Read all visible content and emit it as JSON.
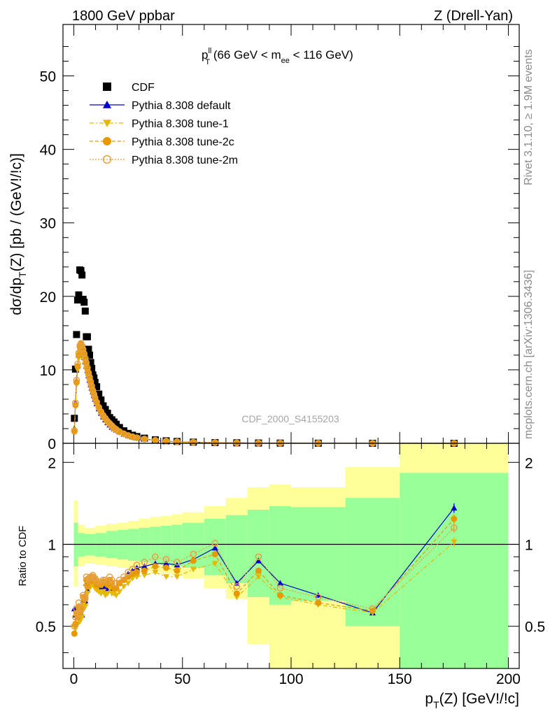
{
  "header": {
    "left": "1800 GeV ppbar",
    "right": "Z (Drell-Yan)"
  },
  "side_labels": {
    "rivet": "Rivet 3.1.10, ≥ 1.9M events",
    "mcplots": "mcplots.cern.ch [arXiv:1306.3436]"
  },
  "watermark": "CDF_2000_S4155203",
  "plot_title": {
    "p": "p",
    "sup": "ll",
    "sub": "T",
    "rest1": " (66 GeV < m",
    "sub2": "ee",
    "rest2": " < 116 GeV)"
  },
  "axis_titles": {
    "y_main": "dσ/dp",
    "y_main_sub": "T",
    "y_main_rest": "(Z) [pb / (GeV!/!c)]",
    "y_ratio": "Ratio to CDF",
    "x_p": "p",
    "x_sub": "T",
    "x_rest": "(Z) [GeV!/!c]"
  },
  "legend": [
    {
      "label": "CDF",
      "color": "#000000",
      "marker": "square",
      "dash": ""
    },
    {
      "label": "Pythia 8.308 default",
      "color": "#0000cc",
      "marker": "triangle-up",
      "dash": ""
    },
    {
      "label": "Pythia 8.308 tune-1",
      "color": "#e6b800",
      "marker": "triangle-down",
      "dash": "6,3,2,3"
    },
    {
      "label": "Pythia 8.308 tune-2c",
      "color": "#e69900",
      "marker": "circle",
      "dash": "5,3"
    },
    {
      "label": "Pythia 8.308 tune-2m",
      "color": "#e6a040",
      "marker": "circle-open",
      "dash": "2,2"
    }
  ],
  "chart_data": [
    {
      "type": "scatter",
      "name": "main",
      "xlim": [
        -5,
        205
      ],
      "ylim": [
        0,
        57
      ],
      "yticks": [
        0,
        10,
        20,
        30,
        40,
        50
      ],
      "x": [
        0.25,
        0.75,
        1.25,
        1.75,
        2.25,
        2.75,
        3.25,
        3.75,
        4.25,
        4.75,
        5.25,
        5.75,
        6.25,
        6.75,
        7.25,
        7.75,
        8.25,
        8.75,
        9.25,
        9.75,
        10.5,
        11.5,
        12.5,
        13.5,
        14.5,
        15.5,
        16.5,
        17.5,
        18.5,
        19.5,
        21,
        23,
        25,
        27,
        29,
        32.5,
        37.5,
        42.5,
        47.5,
        55,
        65,
        75,
        85,
        95,
        112.5,
        137.5,
        175
      ],
      "series": [
        {
          "name": "CDF",
          "values": [
            3.4,
            10.1,
            14.8,
            19.5,
            20.2,
            23.6,
            23.5,
            22.9,
            19.6,
            19.2,
            18.0,
            14.5,
            14.5,
            12.8,
            12.0,
            11.0,
            10.2,
            9.3,
            8.9,
            8.3,
            7.7,
            6.7,
            5.9,
            5.1,
            4.6,
            4.1,
            3.5,
            3.2,
            2.9,
            2.6,
            2.15,
            1.7,
            1.35,
            1.1,
            0.92,
            0.7,
            0.47,
            0.34,
            0.25,
            0.16,
            0.1,
            0.065,
            0.042,
            0.028,
            0.016,
            0.007,
            0.0015
          ]
        },
        {
          "name": "Pythia 8.308 default",
          "values": [
            2.0,
            5.5,
            8.5,
            10.5,
            12.0,
            12.8,
            13.0,
            12.7,
            12.2,
            11.7,
            11.1,
            10.5,
            9.9,
            9.2,
            8.6,
            8.0,
            7.5,
            7.0,
            6.5,
            6.0,
            5.4,
            4.7,
            4.1,
            3.6,
            3.2,
            2.8,
            2.5,
            2.2,
            2.0,
            1.8,
            1.55,
            1.25,
            1.05,
            0.88,
            0.75,
            0.58,
            0.4,
            0.29,
            0.21,
            0.14,
            0.09,
            0.055,
            0.036,
            0.024,
            0.013,
            0.005,
            0.0013
          ]
        },
        {
          "name": "Pythia 8.308 tune-1",
          "values": [
            1.7,
            5.0,
            8.0,
            10.0,
            11.5,
            12.3,
            12.5,
            12.3,
            11.8,
            11.3,
            10.7,
            10.1,
            9.5,
            8.9,
            8.3,
            7.7,
            7.2,
            6.7,
            6.2,
            5.7,
            5.2,
            4.5,
            3.9,
            3.4,
            3.0,
            2.7,
            2.4,
            2.1,
            1.9,
            1.7,
            1.45,
            1.2,
            0.98,
            0.82,
            0.7,
            0.54,
            0.37,
            0.26,
            0.19,
            0.13,
            0.085,
            0.048,
            0.032,
            0.021,
            0.012,
            0.004,
            0.0011
          ]
        },
        {
          "name": "Pythia 8.308 tune-2c",
          "values": [
            1.6,
            5.2,
            8.3,
            10.5,
            12.0,
            13.1,
            13.5,
            13.2,
            12.6,
            12.0,
            11.4,
            10.8,
            10.1,
            9.4,
            8.8,
            8.2,
            7.6,
            7.1,
            6.6,
            6.1,
            5.5,
            4.8,
            4.2,
            3.7,
            3.3,
            2.9,
            2.6,
            2.3,
            2.0,
            1.8,
            1.55,
            1.25,
            1.03,
            0.86,
            0.73,
            0.56,
            0.39,
            0.28,
            0.2,
            0.14,
            0.09,
            0.05,
            0.034,
            0.022,
            0.012,
            0.004,
            0.0012
          ]
        },
        {
          "name": "Pythia 8.308 tune-2m",
          "values": [
            1.7,
            5.5,
            8.6,
            10.8,
            12.3,
            13.3,
            13.6,
            13.3,
            12.8,
            12.2,
            11.6,
            11.0,
            10.3,
            9.6,
            9.0,
            8.4,
            7.8,
            7.2,
            6.7,
            6.2,
            5.6,
            4.9,
            4.3,
            3.8,
            3.4,
            3.0,
            2.7,
            2.4,
            2.1,
            1.9,
            1.6,
            1.3,
            1.07,
            0.9,
            0.76,
            0.59,
            0.41,
            0.3,
            0.21,
            0.15,
            0.1,
            0.05,
            0.035,
            0.023,
            0.013,
            0.004,
            0.0012
          ]
        }
      ]
    },
    {
      "type": "scatter",
      "name": "ratio",
      "xlim": [
        -5,
        205
      ],
      "ylim": [
        0.35,
        2.35
      ],
      "yticks": [
        0.5,
        1,
        2
      ],
      "xticks": [
        0,
        50,
        100,
        150,
        200
      ],
      "reference_line": 1,
      "x": [
        0.25,
        0.75,
        1.25,
        1.75,
        2.25,
        2.75,
        3.25,
        3.75,
        4.25,
        4.75,
        5.25,
        5.75,
        6.25,
        6.75,
        7.25,
        7.75,
        8.25,
        8.75,
        9.25,
        9.75,
        10.5,
        11.5,
        12.5,
        13.5,
        14.5,
        15.5,
        16.5,
        17.5,
        18.5,
        19.5,
        21,
        23,
        25,
        27,
        29,
        32.5,
        37.5,
        42.5,
        47.5,
        55,
        65,
        75,
        85,
        95,
        112.5,
        137.5,
        175
      ],
      "bands": {
        "bin_edges": [
          0,
          2,
          5,
          10,
          15,
          20,
          25,
          30,
          35,
          40,
          45,
          50,
          60,
          70,
          80,
          90,
          100,
          125,
          150,
          200
        ],
        "stat_up": [
          1.2,
          1.1,
          1.09,
          1.1,
          1.12,
          1.13,
          1.14,
          1.15,
          1.16,
          1.17,
          1.18,
          1.2,
          1.24,
          1.28,
          1.34,
          1.38,
          1.37,
          1.48,
          1.83
        ],
        "stat_down": [
          0.83,
          0.9,
          0.91,
          0.9,
          0.89,
          0.88,
          0.87,
          0.86,
          0.85,
          0.84,
          0.83,
          0.82,
          0.77,
          0.72,
          0.64,
          0.6,
          0.62,
          0.5,
          0.15
        ],
        "total_up": [
          1.45,
          1.18,
          1.15,
          1.17,
          1.19,
          1.2,
          1.22,
          1.24,
          1.26,
          1.27,
          1.29,
          1.31,
          1.38,
          1.48,
          1.62,
          1.66,
          1.62,
          1.92,
          2.5
        ],
        "total_down": [
          0.7,
          0.83,
          0.85,
          0.84,
          0.83,
          0.82,
          0.81,
          0.8,
          0.79,
          0.78,
          0.77,
          0.75,
          0.69,
          0.63,
          0.43,
          0.3,
          0.3,
          0.3,
          0.15
        ],
        "stat_color": "#99ff99",
        "total_color": "#ffff99"
      },
      "series": [
        {
          "name": "Pythia 8.308 default",
          "values": [
            0.58,
            0.55,
            0.57,
            0.54,
            0.59,
            0.54,
            0.55,
            0.55,
            0.62,
            0.61,
            0.62,
            0.72,
            0.68,
            0.72,
            0.72,
            0.73,
            0.74,
            0.75,
            0.73,
            0.72,
            0.7,
            0.7,
            0.69,
            0.71,
            0.7,
            0.68,
            0.71,
            0.69,
            0.69,
            0.69,
            0.72,
            0.74,
            0.78,
            0.8,
            0.82,
            0.83,
            0.85,
            0.85,
            0.84,
            0.88,
            0.97,
            0.72,
            0.87,
            0.72,
            0.65,
            0.56,
            1.36
          ]
        },
        {
          "name": "Pythia 8.308 tune-1",
          "values": [
            0.5,
            0.49,
            0.54,
            0.51,
            0.57,
            0.52,
            0.53,
            0.54,
            0.6,
            0.59,
            0.59,
            0.7,
            0.66,
            0.7,
            0.69,
            0.7,
            0.71,
            0.72,
            0.7,
            0.69,
            0.68,
            0.67,
            0.66,
            0.67,
            0.65,
            0.66,
            0.69,
            0.66,
            0.66,
            0.65,
            0.67,
            0.7,
            0.72,
            0.75,
            0.76,
            0.77,
            0.79,
            0.76,
            0.76,
            0.81,
            0.85,
            0.64,
            0.76,
            0.64,
            0.6,
            0.56,
            1.02
          ]
        },
        {
          "name": "Pythia 8.308 tune-2c",
          "values": [
            0.47,
            0.51,
            0.56,
            0.54,
            0.59,
            0.56,
            0.57,
            0.58,
            0.64,
            0.63,
            0.63,
            0.74,
            0.7,
            0.74,
            0.73,
            0.75,
            0.75,
            0.76,
            0.74,
            0.73,
            0.71,
            0.72,
            0.71,
            0.73,
            0.72,
            0.71,
            0.74,
            0.72,
            0.69,
            0.69,
            0.72,
            0.74,
            0.76,
            0.78,
            0.79,
            0.8,
            0.83,
            0.82,
            0.8,
            0.87,
            0.92,
            0.66,
            0.8,
            0.65,
            0.61,
            0.57,
            1.24
          ]
        },
        {
          "name": "Pythia 8.308 tune-2m",
          "values": [
            0.5,
            0.54,
            0.58,
            0.55,
            0.61,
            0.56,
            0.58,
            0.58,
            0.65,
            0.64,
            0.64,
            0.76,
            0.71,
            0.75,
            0.75,
            0.76,
            0.76,
            0.77,
            0.75,
            0.75,
            0.73,
            0.73,
            0.72,
            0.74,
            0.74,
            0.73,
            0.76,
            0.74,
            0.72,
            0.72,
            0.74,
            0.76,
            0.79,
            0.81,
            0.84,
            0.86,
            0.9,
            0.88,
            0.86,
            0.92,
            1.01,
            0.7,
            0.9,
            0.69,
            0.64,
            0.58,
            1.15
          ]
        }
      ]
    }
  ]
}
